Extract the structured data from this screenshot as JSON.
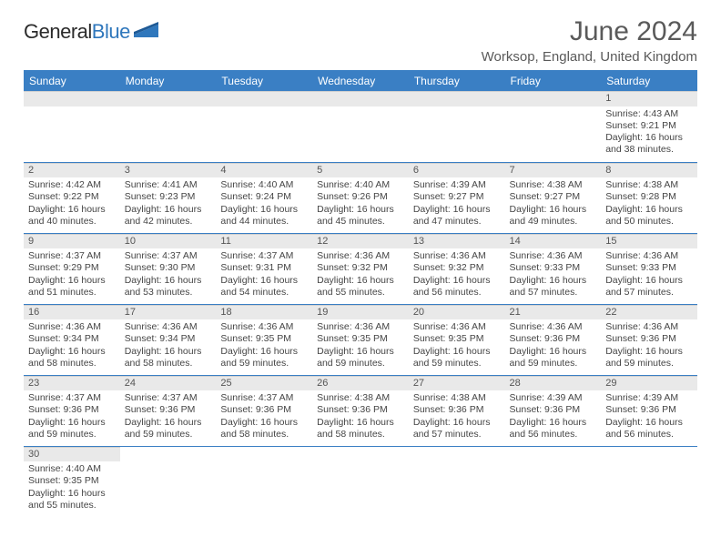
{
  "branding": {
    "logo_text_a": "General",
    "logo_text_b": "Blue",
    "logo_color_a": "#2b2b2b",
    "logo_color_b": "#2f77bc"
  },
  "header": {
    "month_title": "June 2024",
    "location": "Worksop, England, United Kingdom"
  },
  "palette": {
    "header_bg": "#3a7fc4",
    "header_text": "#ffffff",
    "daynum_bg": "#e9e9e9",
    "cell_border": "#3a7fc4",
    "body_text": "#454545",
    "page_bg": "#ffffff"
  },
  "weekdays": [
    "Sunday",
    "Monday",
    "Tuesday",
    "Wednesday",
    "Thursday",
    "Friday",
    "Saturday"
  ],
  "layout": {
    "first_weekday_index": 6,
    "days_in_month": 30,
    "type": "calendar-table"
  },
  "days": {
    "1": {
      "sunrise": "4:43 AM",
      "sunset": "9:21 PM",
      "daylight": "16 hours and 38 minutes."
    },
    "2": {
      "sunrise": "4:42 AM",
      "sunset": "9:22 PM",
      "daylight": "16 hours and 40 minutes."
    },
    "3": {
      "sunrise": "4:41 AM",
      "sunset": "9:23 PM",
      "daylight": "16 hours and 42 minutes."
    },
    "4": {
      "sunrise": "4:40 AM",
      "sunset": "9:24 PM",
      "daylight": "16 hours and 44 minutes."
    },
    "5": {
      "sunrise": "4:40 AM",
      "sunset": "9:26 PM",
      "daylight": "16 hours and 45 minutes."
    },
    "6": {
      "sunrise": "4:39 AM",
      "sunset": "9:27 PM",
      "daylight": "16 hours and 47 minutes."
    },
    "7": {
      "sunrise": "4:38 AM",
      "sunset": "9:27 PM",
      "daylight": "16 hours and 49 minutes."
    },
    "8": {
      "sunrise": "4:38 AM",
      "sunset": "9:28 PM",
      "daylight": "16 hours and 50 minutes."
    },
    "9": {
      "sunrise": "4:37 AM",
      "sunset": "9:29 PM",
      "daylight": "16 hours and 51 minutes."
    },
    "10": {
      "sunrise": "4:37 AM",
      "sunset": "9:30 PM",
      "daylight": "16 hours and 53 minutes."
    },
    "11": {
      "sunrise": "4:37 AM",
      "sunset": "9:31 PM",
      "daylight": "16 hours and 54 minutes."
    },
    "12": {
      "sunrise": "4:36 AM",
      "sunset": "9:32 PM",
      "daylight": "16 hours and 55 minutes."
    },
    "13": {
      "sunrise": "4:36 AM",
      "sunset": "9:32 PM",
      "daylight": "16 hours and 56 minutes."
    },
    "14": {
      "sunrise": "4:36 AM",
      "sunset": "9:33 PM",
      "daylight": "16 hours and 57 minutes."
    },
    "15": {
      "sunrise": "4:36 AM",
      "sunset": "9:33 PM",
      "daylight": "16 hours and 57 minutes."
    },
    "16": {
      "sunrise": "4:36 AM",
      "sunset": "9:34 PM",
      "daylight": "16 hours and 58 minutes."
    },
    "17": {
      "sunrise": "4:36 AM",
      "sunset": "9:34 PM",
      "daylight": "16 hours and 58 minutes."
    },
    "18": {
      "sunrise": "4:36 AM",
      "sunset": "9:35 PM",
      "daylight": "16 hours and 59 minutes."
    },
    "19": {
      "sunrise": "4:36 AM",
      "sunset": "9:35 PM",
      "daylight": "16 hours and 59 minutes."
    },
    "20": {
      "sunrise": "4:36 AM",
      "sunset": "9:35 PM",
      "daylight": "16 hours and 59 minutes."
    },
    "21": {
      "sunrise": "4:36 AM",
      "sunset": "9:36 PM",
      "daylight": "16 hours and 59 minutes."
    },
    "22": {
      "sunrise": "4:36 AM",
      "sunset": "9:36 PM",
      "daylight": "16 hours and 59 minutes."
    },
    "23": {
      "sunrise": "4:37 AM",
      "sunset": "9:36 PM",
      "daylight": "16 hours and 59 minutes."
    },
    "24": {
      "sunrise": "4:37 AM",
      "sunset": "9:36 PM",
      "daylight": "16 hours and 59 minutes."
    },
    "25": {
      "sunrise": "4:37 AM",
      "sunset": "9:36 PM",
      "daylight": "16 hours and 58 minutes."
    },
    "26": {
      "sunrise": "4:38 AM",
      "sunset": "9:36 PM",
      "daylight": "16 hours and 58 minutes."
    },
    "27": {
      "sunrise": "4:38 AM",
      "sunset": "9:36 PM",
      "daylight": "16 hours and 57 minutes."
    },
    "28": {
      "sunrise": "4:39 AM",
      "sunset": "9:36 PM",
      "daylight": "16 hours and 56 minutes."
    },
    "29": {
      "sunrise": "4:39 AM",
      "sunset": "9:36 PM",
      "daylight": "16 hours and 56 minutes."
    },
    "30": {
      "sunrise": "4:40 AM",
      "sunset": "9:35 PM",
      "daylight": "16 hours and 55 minutes."
    }
  },
  "labels": {
    "sunrise_prefix": "Sunrise: ",
    "sunset_prefix": "Sunset: ",
    "daylight_prefix": "Daylight: "
  }
}
